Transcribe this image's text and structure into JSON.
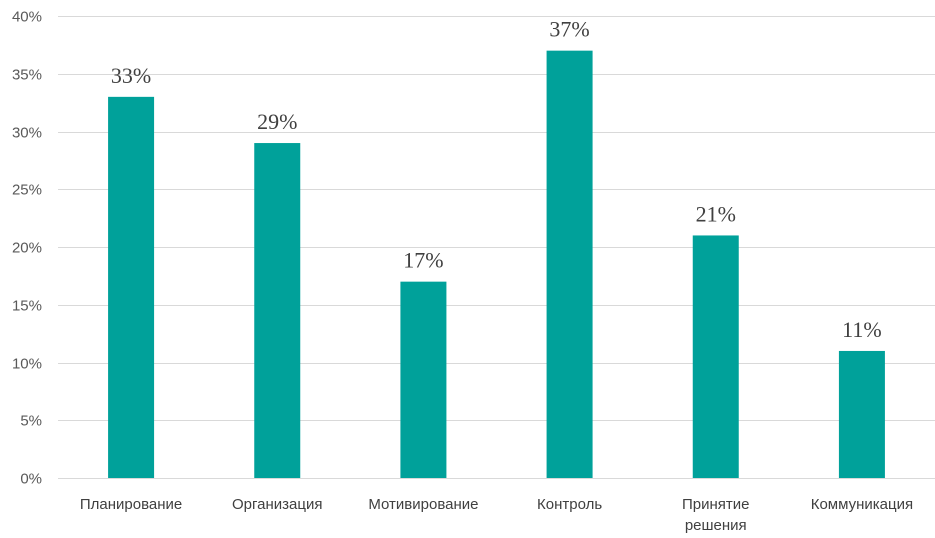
{
  "chart_data": {
    "type": "bar",
    "title": "",
    "xlabel": "",
    "ylabel": "",
    "categories": [
      [
        "Планирование"
      ],
      [
        "Организация"
      ],
      [
        "Мотивирование"
      ],
      [
        "Контроль"
      ],
      [
        "Принятие",
        "решения"
      ],
      [
        "Коммуникация"
      ]
    ],
    "values": [
      33,
      29,
      17,
      37,
      21,
      11
    ],
    "data_labels": [
      "33%",
      "29%",
      "17%",
      "37%",
      "21%",
      "11%"
    ],
    "yticks": [
      0,
      5,
      10,
      15,
      20,
      25,
      30,
      35,
      40
    ],
    "ytick_labels": [
      "0%",
      "5%",
      "10%",
      "15%",
      "20%",
      "25%",
      "30%",
      "35%",
      "40%"
    ],
    "ylim": [
      0,
      40
    ],
    "grid": true,
    "legend": "none",
    "bar_color": "#00A19A",
    "grid_color": "#D9D9D9"
  }
}
